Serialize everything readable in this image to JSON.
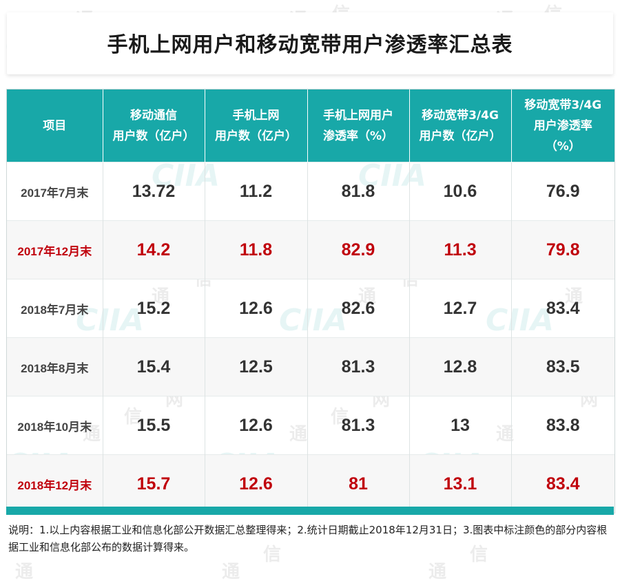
{
  "title": "手机上网用户和移动宽带用户渗透率汇总表",
  "headers": [
    [
      "项目"
    ],
    [
      "移动通信",
      "用户数（亿户）"
    ],
    [
      "手机上网",
      "用户数（亿户）"
    ],
    [
      "手机上网用户",
      "渗透率（%）"
    ],
    [
      "移动宽带3/4G",
      "用户数（亿户）"
    ],
    [
      "移动宽带3/4G",
      "用户渗透率",
      "（%）"
    ]
  ],
  "rows": [
    {
      "label": "2017年7月末",
      "values": [
        "13.72",
        "11.2",
        "81.8",
        "10.6",
        "76.9"
      ],
      "highlight": false
    },
    {
      "label": "2017年12月末",
      "values": [
        "14.2",
        "11.8",
        "82.9",
        "11.3",
        "79.8"
      ],
      "highlight": true
    },
    {
      "label": "2018年7月末",
      "values": [
        "15.2",
        "12.6",
        "82.6",
        "12.7",
        "83.4"
      ],
      "highlight": false
    },
    {
      "label": "2018年8月末",
      "values": [
        "15.4",
        "12.5",
        "81.3",
        "12.8",
        "83.5"
      ],
      "highlight": false
    },
    {
      "label": "2018年10月末",
      "values": [
        "15.5",
        "12.6",
        "81.3",
        "13",
        "83.8"
      ],
      "highlight": false
    },
    {
      "label": "2018年12月末",
      "values": [
        "15.7",
        "12.6",
        "81",
        "13.1",
        "83.4"
      ],
      "highlight": true
    }
  ],
  "note": "说明：1.以上内容根据工业和信息化部公开数据汇总整理得来；2.统计日期截止2018年12月31日；3.图表中标注颜色的部分内容根据工业和信息化部公布的数据计算得来。",
  "watermark": {
    "chars": [
      "通",
      "信",
      "网"
    ],
    "logo": "CIIA"
  },
  "colors": {
    "header_bg": "#18a8a8",
    "highlight_text": "#c0000b",
    "alt_row_bg": "#f7f7f7"
  }
}
